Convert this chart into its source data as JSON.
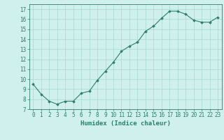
{
  "x": [
    0,
    1,
    2,
    3,
    4,
    5,
    6,
    7,
    8,
    9,
    10,
    11,
    12,
    13,
    14,
    15,
    16,
    17,
    18,
    19,
    20,
    21,
    22,
    23
  ],
  "y": [
    9.5,
    8.5,
    7.8,
    7.5,
    7.8,
    7.8,
    8.6,
    8.8,
    9.9,
    10.8,
    11.7,
    12.8,
    13.3,
    13.7,
    14.8,
    15.3,
    16.1,
    16.8,
    16.8,
    16.5,
    15.9,
    15.7,
    15.7,
    16.2
  ],
  "xlabel": "Humidex (Indice chaleur)",
  "xlim": [
    -0.5,
    23.5
  ],
  "ylim": [
    7,
    17.5
  ],
  "yticks": [
    7,
    8,
    9,
    10,
    11,
    12,
    13,
    14,
    15,
    16,
    17
  ],
  "xtick_labels": [
    "0",
    "1",
    "2",
    "3",
    "4",
    "5",
    "6",
    "7",
    "8",
    "9",
    "10",
    "11",
    "12",
    "13",
    "14",
    "15",
    "16",
    "17",
    "18",
    "19",
    "20",
    "21",
    "22",
    "23"
  ],
  "line_color": "#2d7d6f",
  "marker": "D",
  "marker_size": 1.8,
  "bg_color": "#cff0ec",
  "grid_color": "#a8d8d2",
  "tick_label_fontsize": 5.5,
  "xlabel_fontsize": 6.5
}
